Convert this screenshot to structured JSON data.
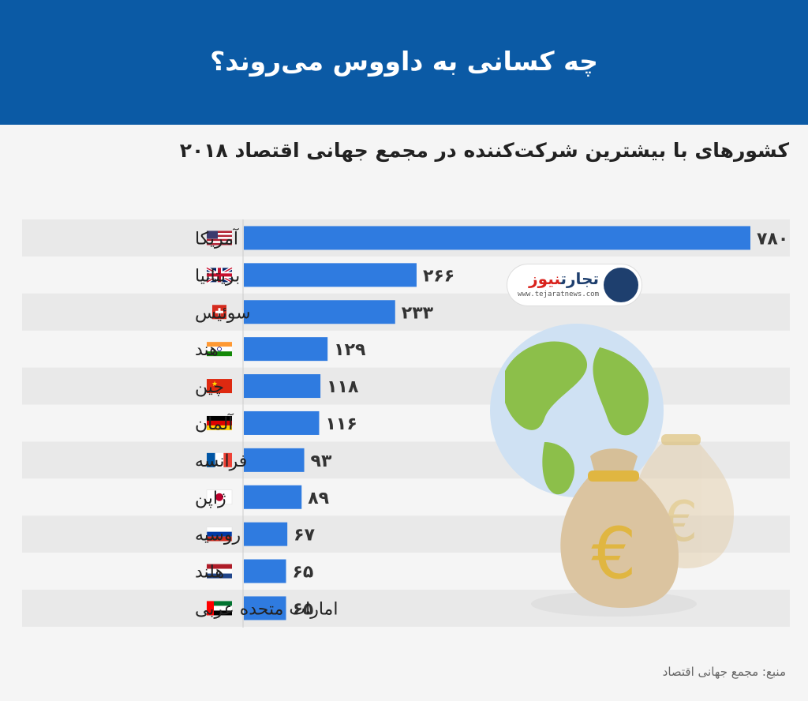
{
  "header": {
    "title": "چه کسانی به داووس می‌روند؟"
  },
  "subtitle": "کشورهای با بیشترین شرکت‌کننده در مجمع جهانی اقتصاد ۲۰۱۸",
  "source": "منبع: مجمع جهانی اقتصاد",
  "logo": {
    "name_part1": "تجارت",
    "name_part2": "نیوز",
    "url": "www.tejaratnews.com"
  },
  "colors": {
    "header": "#0b5aa5",
    "bar": "#2f7be0",
    "row_band": "#e9e9e9"
  },
  "chart_data": {
    "type": "bar",
    "orientation": "horizontal",
    "categories": [
      "آمریکا",
      "بریتانیا",
      "سوئیس",
      "هند",
      "چین",
      "آلمان",
      "فرانسه",
      "ژاپن",
      "روسیه",
      "هلند",
      "امارات متحده عربی"
    ],
    "values": [
      780,
      266,
      233,
      129,
      118,
      116,
      93,
      89,
      67,
      65,
      65
    ],
    "value_labels": [
      "۷۸۰",
      "۲۶۶",
      "۲۳۳",
      "۱۲۹",
      "۱۱۸",
      "۱۱۶",
      "۹۳",
      "۸۹",
      "۶۷",
      "۶۵",
      "۶۵"
    ],
    "flags": [
      "us-flag",
      "uk-flag",
      "swiss-flag",
      "india-flag",
      "china-flag",
      "germany-flag",
      "france-flag",
      "japan-flag",
      "russia-flag",
      "netherlands-flag",
      "uae-flag"
    ],
    "xlim": [
      0,
      780
    ]
  }
}
